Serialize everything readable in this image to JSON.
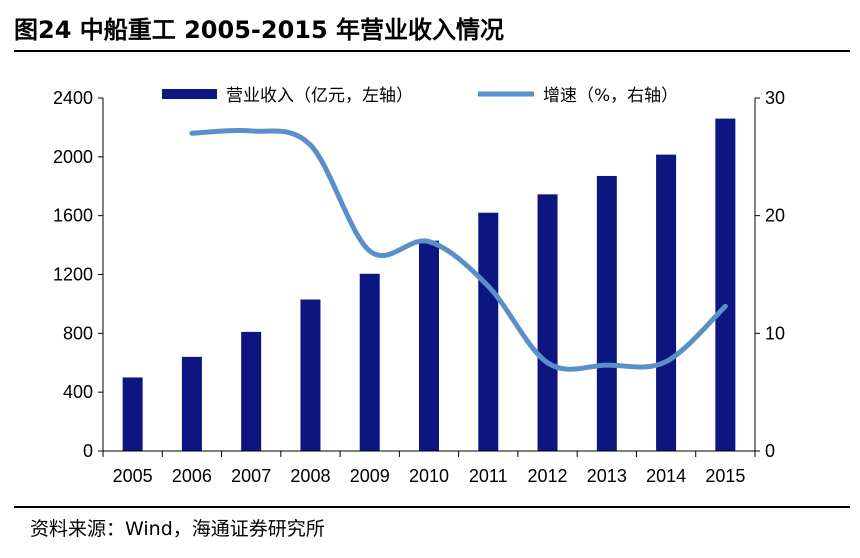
{
  "title": "图24 中船重工 2005-2015 年营业收入情况",
  "source": "资料来源：Wind，海通证券研究所",
  "colors": {
    "bar": "#0d1580",
    "line": "#5b8fc9",
    "axis": "#000000"
  },
  "chart_data": {
    "type": "bar",
    "categories": [
      "2005",
      "2006",
      "2007",
      "2008",
      "2009",
      "2010",
      "2011",
      "2012",
      "2013",
      "2014",
      "2015"
    ],
    "series": [
      {
        "name": "营业收入（亿元，左轴）",
        "axis": "left",
        "type": "bar",
        "values": [
          500,
          640,
          810,
          1030,
          1205,
          1430,
          1620,
          1745,
          1870,
          2015,
          2260
        ]
      },
      {
        "name": "增速（%，右轴）",
        "axis": "right",
        "type": "line",
        "values": [
          null,
          27,
          27.2,
          26,
          17,
          17.8,
          14,
          7.5,
          7.3,
          7.6,
          12.3
        ]
      }
    ],
    "yleft": {
      "lim": [
        0,
        2400
      ],
      "ticks": [
        "0",
        "400",
        "800",
        "1200",
        "1600",
        "2000",
        "2400"
      ]
    },
    "yright": {
      "lim": [
        0,
        30
      ],
      "ticks": [
        "0",
        "10",
        "20",
        "30"
      ]
    },
    "legend_position": "top"
  }
}
